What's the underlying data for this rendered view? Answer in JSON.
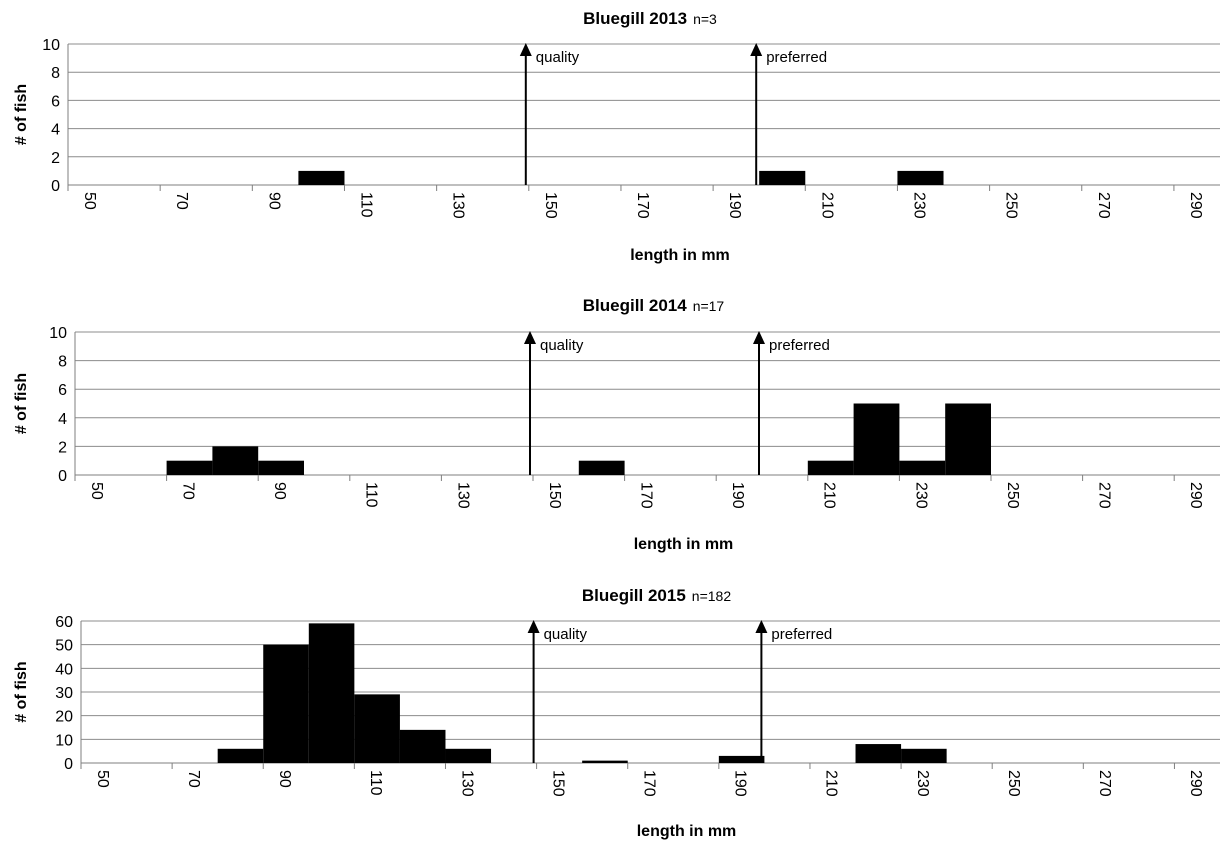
{
  "chart_data": [
    {
      "type": "bar",
      "title": "Bluegill 2013",
      "title_note": "n=3",
      "xlabel": "length in mm",
      "ylabel": "# of fish",
      "ylim": [
        0,
        10
      ],
      "yticks": [
        "0",
        "2",
        "4",
        "6",
        "8",
        "10"
      ],
      "xticks": [
        "50",
        "70",
        "90",
        "110",
        "130",
        "150",
        "170",
        "190",
        "210",
        "230",
        "250",
        "270",
        "290"
      ],
      "bins": [
        50,
        60,
        70,
        80,
        90,
        100,
        110,
        120,
        130,
        140,
        150,
        160,
        170,
        180,
        190,
        200,
        210,
        220,
        230,
        240,
        250,
        260,
        270,
        280,
        290,
        300
      ],
      "values": [
        0,
        0,
        0,
        0,
        0,
        1,
        0,
        0,
        0,
        0,
        0,
        0,
        0,
        0,
        0,
        1,
        0,
        0,
        1,
        0,
        0,
        0,
        0,
        0,
        0,
        0
      ],
      "markers": [
        {
          "label": "quality",
          "at": 150
        },
        {
          "label": "preferred",
          "at": 200
        }
      ],
      "grid": true
    },
    {
      "type": "bar",
      "title": "Bluegill 2014",
      "title_note": "n=17",
      "xlabel": "length in mm",
      "ylabel": "# of fish",
      "ylim": [
        0,
        10
      ],
      "yticks": [
        "0",
        "2",
        "4",
        "6",
        "8",
        "10"
      ],
      "xticks": [
        "50",
        "70",
        "90",
        "110",
        "130",
        "150",
        "170",
        "190",
        "210",
        "230",
        "250",
        "270",
        "290"
      ],
      "bins": [
        50,
        60,
        70,
        80,
        90,
        100,
        110,
        120,
        130,
        140,
        150,
        160,
        170,
        180,
        190,
        200,
        210,
        220,
        230,
        240,
        250,
        260,
        270,
        280,
        290,
        300
      ],
      "values": [
        0,
        0,
        1,
        2,
        1,
        0,
        0,
        0,
        0,
        0,
        0,
        1,
        0,
        0,
        0,
        0,
        1,
        5,
        1,
        5,
        0,
        0,
        0,
        0,
        0,
        0
      ],
      "markers": [
        {
          "label": "quality",
          "at": 150
        },
        {
          "label": "preferred",
          "at": 200
        }
      ],
      "grid": true
    },
    {
      "type": "bar",
      "title": "Bluegill 2015",
      "title_note": "n=182",
      "xlabel": "length in mm",
      "ylabel": "# of fish",
      "ylim": [
        0,
        60
      ],
      "yticks": [
        "0",
        "10",
        "20",
        "30",
        "40",
        "50",
        "60"
      ],
      "xticks": [
        "50",
        "70",
        "90",
        "110",
        "130",
        "150",
        "170",
        "190",
        "210",
        "230",
        "250",
        "270",
        "290"
      ],
      "bins": [
        50,
        60,
        70,
        80,
        90,
        100,
        110,
        120,
        130,
        140,
        150,
        160,
        170,
        180,
        190,
        200,
        210,
        220,
        230,
        240,
        250,
        260,
        270,
        280,
        290,
        300
      ],
      "values": [
        0,
        0,
        0,
        6,
        50,
        59,
        29,
        14,
        6,
        0,
        0,
        1,
        0,
        0,
        3,
        0,
        0,
        8,
        6,
        0,
        0,
        0,
        0,
        0,
        0,
        0
      ],
      "markers": [
        {
          "label": "quality",
          "at": 150
        },
        {
          "label": "preferred",
          "at": 200
        }
      ],
      "grid": true
    }
  ]
}
